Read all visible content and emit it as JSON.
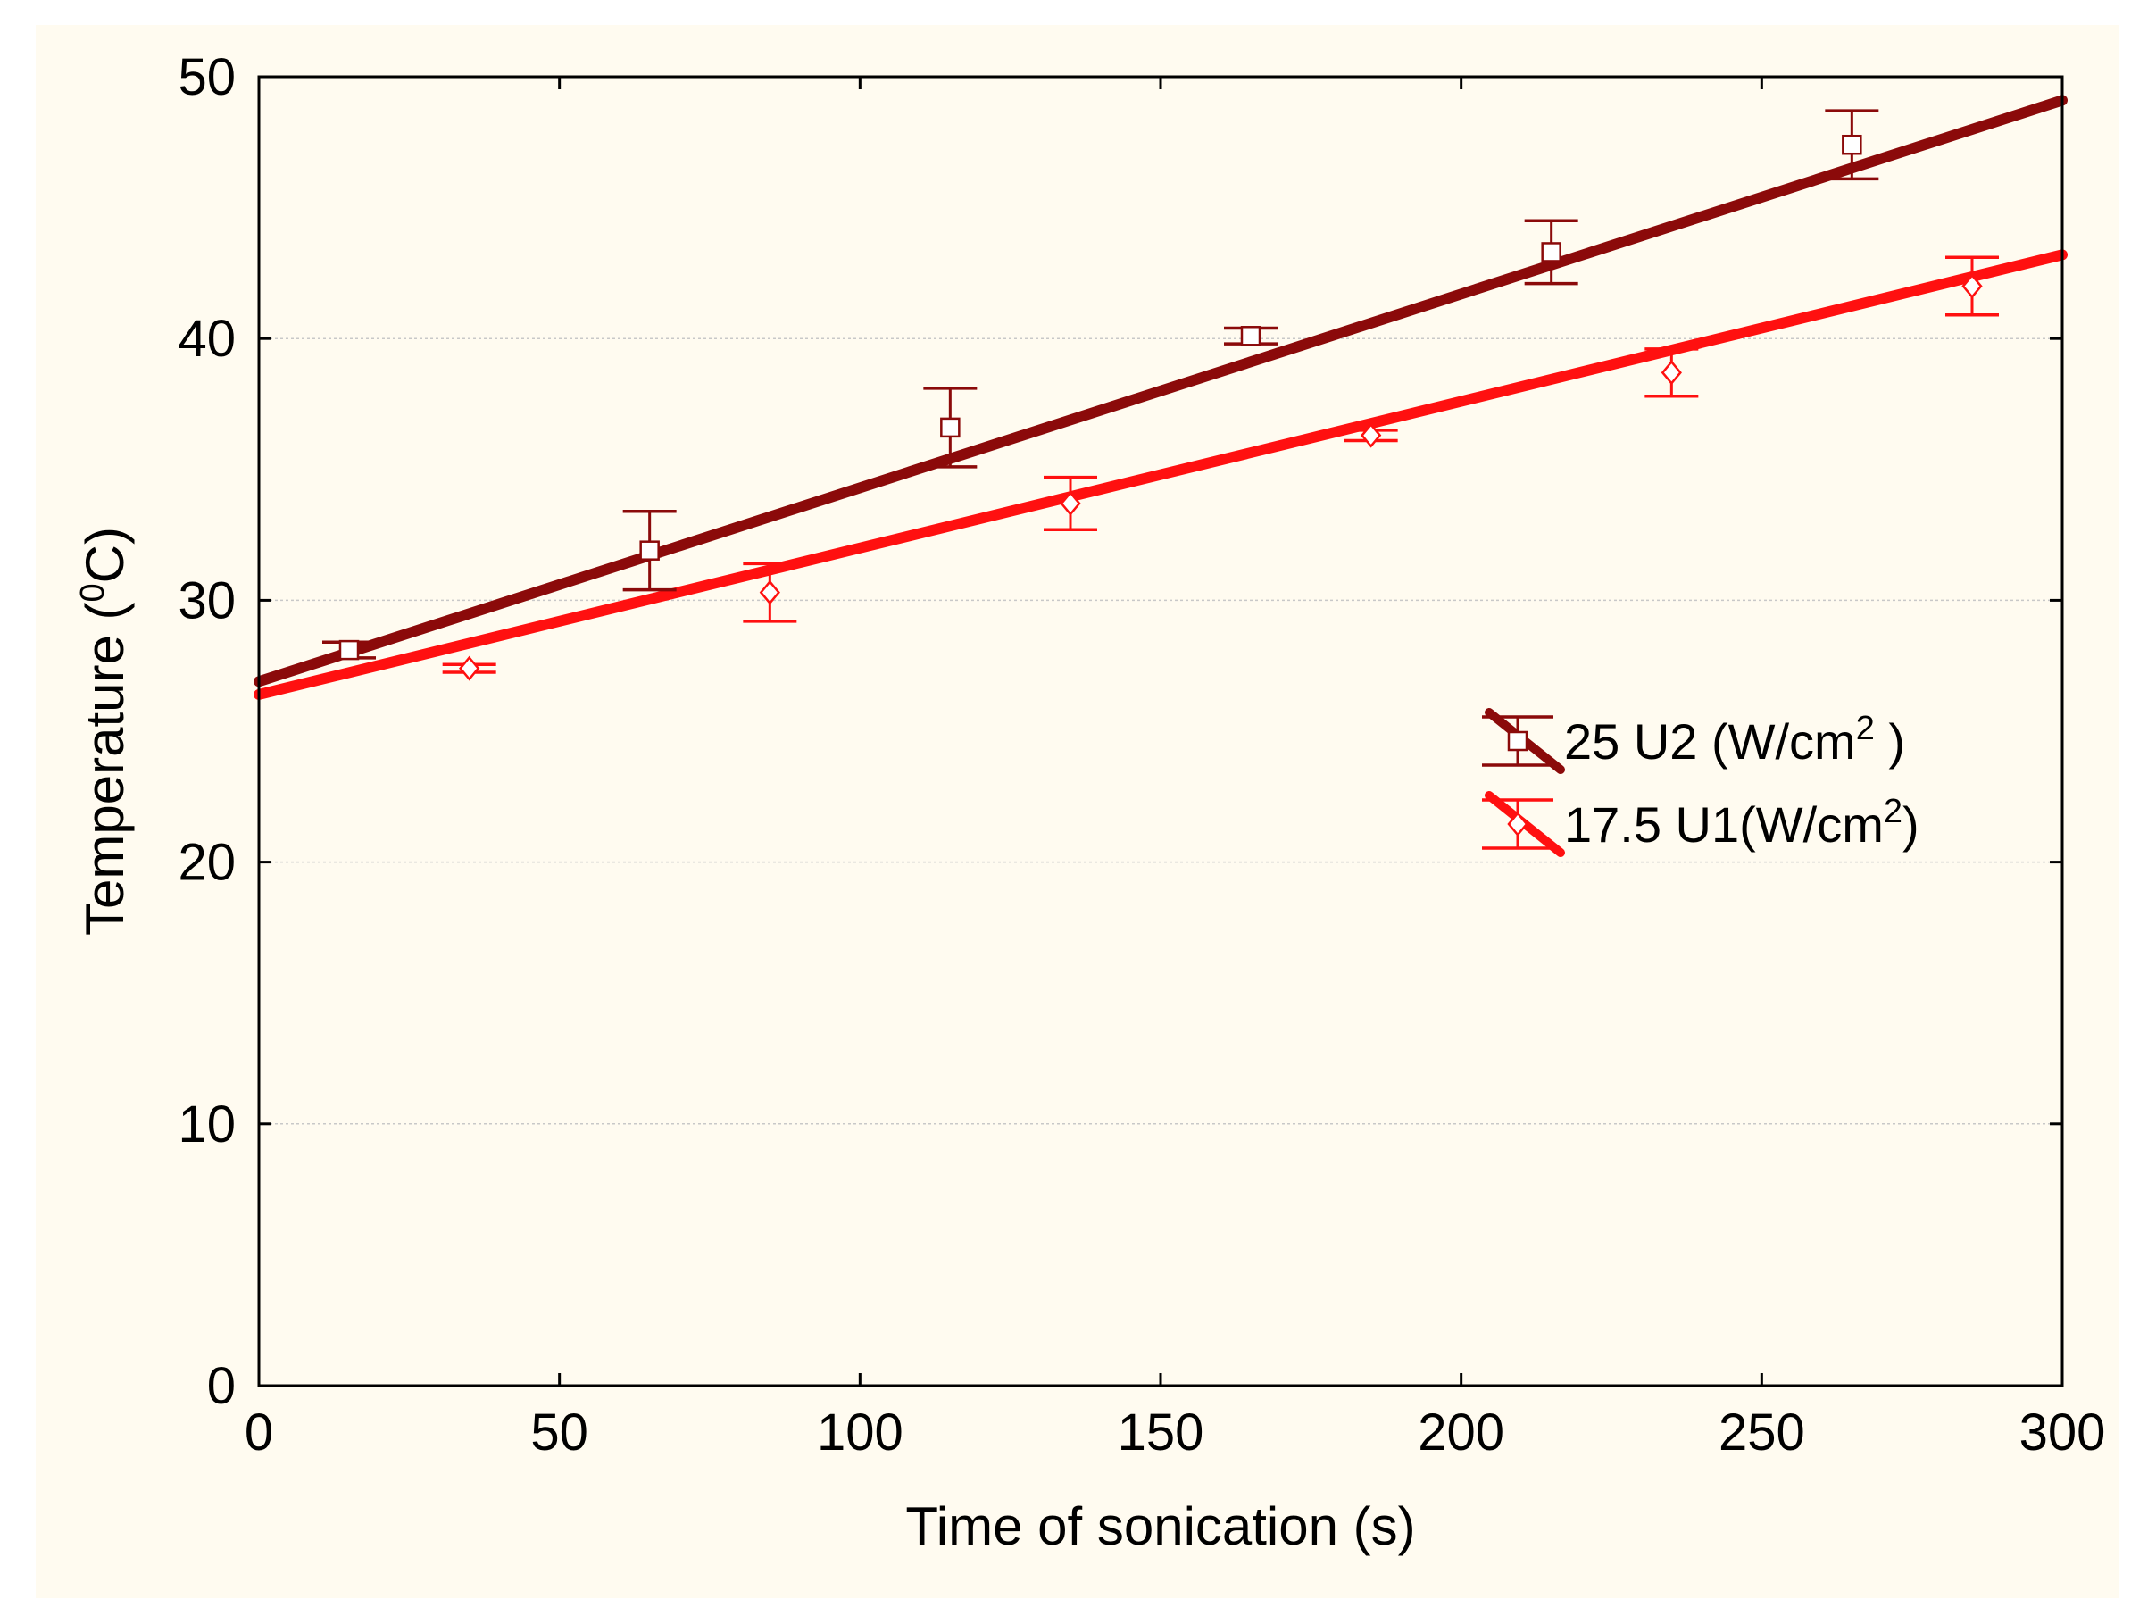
{
  "chart_data": {
    "type": "scatter",
    "title": "",
    "xlabel": "Time of sonication (s)",
    "ylabel_prefix": "Temperature (",
    "ylabel_sup": "0",
    "ylabel_suffix": "C)",
    "xlim": [
      0,
      300
    ],
    "ylim": [
      0,
      50
    ],
    "x_ticks": [
      0,
      50,
      100,
      150,
      200,
      250,
      300
    ],
    "y_ticks": [
      0,
      10,
      20,
      30,
      40,
      50
    ],
    "grid": "horizontal dotted",
    "legend_position": "right-middle",
    "series": [
      {
        "name": "25 U2 (W/cm2 )",
        "label_main": "25 U2 (W/cm",
        "label_sup": "2",
        "label_end": " )",
        "marker": "square",
        "color": "#8b0a0a",
        "fit": {
          "intercept": 26.9,
          "slope": 0.074
        },
        "points": [
          {
            "x": 15,
            "y": 28.1,
            "err": 0.3
          },
          {
            "x": 65,
            "y": 31.9,
            "err": 1.5
          },
          {
            "x": 115,
            "y": 36.6,
            "err": 1.5
          },
          {
            "x": 165,
            "y": 40.1,
            "err": 0.3
          },
          {
            "x": 215,
            "y": 43.3,
            "err": 1.2
          },
          {
            "x": 265,
            "y": 47.4,
            "err": 1.3
          }
        ]
      },
      {
        "name": "17.5 U1(W/cm2)",
        "label_main": "17.5 U1(W/cm",
        "label_sup": "2",
        "label_end": ")",
        "marker": "diamond",
        "color": "#ff1010",
        "fit": {
          "intercept": 26.4,
          "slope": 0.056
        },
        "points": [
          {
            "x": 35,
            "y": 27.4,
            "err": 0.15
          },
          {
            "x": 85,
            "y": 30.3,
            "err": 1.1
          },
          {
            "x": 135,
            "y": 33.7,
            "err": 1.0
          },
          {
            "x": 185,
            "y": 36.3,
            "err": 0.2
          },
          {
            "x": 235,
            "y": 38.7,
            "err": 0.9
          },
          {
            "x": 285,
            "y": 42.0,
            "err": 1.1
          }
        ]
      }
    ]
  }
}
